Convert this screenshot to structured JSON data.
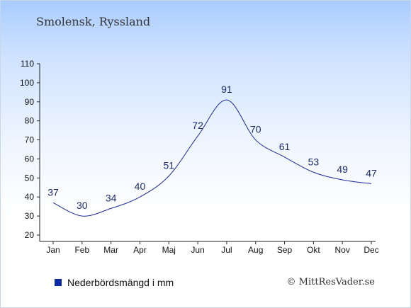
{
  "title": "Smolensk, Ryssland",
  "credit": "© MittResVader.se",
  "chart_data": {
    "type": "line",
    "categories": [
      "Jan",
      "Feb",
      "Mar",
      "Apr",
      "Maj",
      "Jun",
      "Jul",
      "Aug",
      "Sep",
      "Okt",
      "Nov",
      "Dec"
    ],
    "series": [
      {
        "name": "Nederbördsmängd i mm",
        "values": [
          37,
          30,
          34,
          40,
          51,
          72,
          91,
          70,
          61,
          53,
          49,
          47
        ]
      }
    ],
    "y_ticks": [
      20,
      30,
      40,
      50,
      60,
      70,
      80,
      90,
      100,
      110
    ],
    "ylim": [
      20,
      110
    ],
    "grid": false,
    "legend_position": "bottom-left",
    "line_color": "#1a2a9c"
  }
}
